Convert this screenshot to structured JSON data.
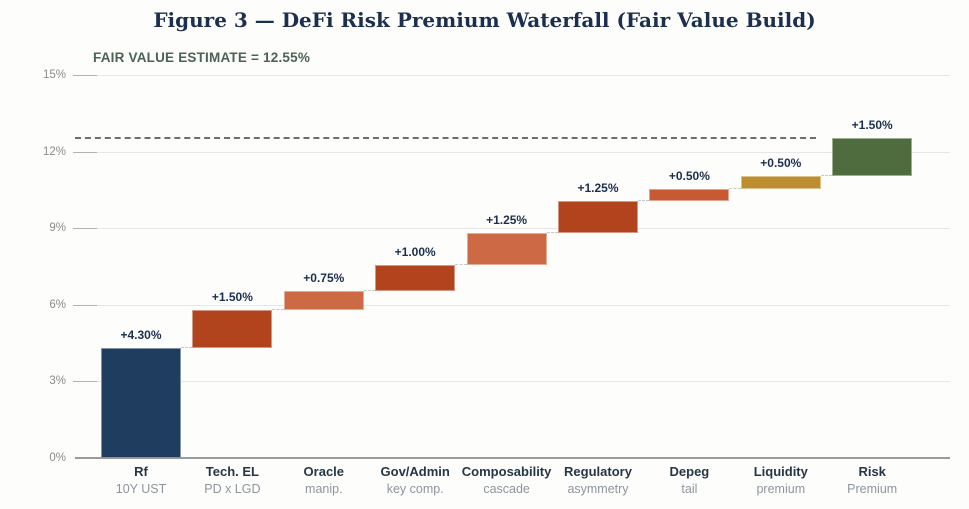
{
  "chart_data": {
    "type": "bar",
    "subtype": "waterfall",
    "title": "Figure 3 — DeFi Risk Premium Waterfall (Fair Value Build)",
    "xlabel": "",
    "ylabel": "",
    "ylim": [
      0,
      15
    ],
    "grid": true,
    "legend": "none",
    "yticks": [
      {
        "value": 0,
        "label": "0%"
      },
      {
        "value": 3,
        "label": "3%"
      },
      {
        "value": 6,
        "label": "6%"
      },
      {
        "value": 9,
        "label": "9%"
      },
      {
        "value": 12,
        "label": "12%"
      },
      {
        "value": 15,
        "label": "15%"
      }
    ],
    "fair_value": {
      "value": 12.55,
      "label": "FAIR VALUE ESTIMATE = 12.55%",
      "line_color": "#6f6d68"
    },
    "categories": [
      {
        "label": "Rf",
        "sublabel": "10Y UST",
        "value": 4.3,
        "value_label": "+4.30%",
        "start": 0,
        "end": 4.3,
        "color": "#1f3d5e"
      },
      {
        "label": "Tech. EL",
        "sublabel": "PD x LGD",
        "value": 1.5,
        "value_label": "+1.50%",
        "start": 4.3,
        "end": 5.8,
        "color": "#b2441d"
      },
      {
        "label": "Oracle",
        "sublabel": "manip.",
        "value": 0.75,
        "value_label": "+0.75%",
        "start": 5.8,
        "end": 6.55,
        "color": "#cb6a44"
      },
      {
        "label": "Gov/Admin",
        "sublabel": "key comp.",
        "value": 1.0,
        "value_label": "+1.00%",
        "start": 6.55,
        "end": 7.55,
        "color": "#b2441d"
      },
      {
        "label": "Composability",
        "sublabel": "cascade",
        "value": 1.25,
        "value_label": "+1.25%",
        "start": 7.55,
        "end": 8.8,
        "color": "#cb6a44"
      },
      {
        "label": "Regulatory",
        "sublabel": "asymmetry",
        "value": 1.25,
        "value_label": "+1.25%",
        "start": 8.8,
        "end": 10.05,
        "color": "#b2441d"
      },
      {
        "label": "Depeg",
        "sublabel": "tail",
        "value": 0.5,
        "value_label": "+0.50%",
        "start": 10.05,
        "end": 10.55,
        "color": "#c75a32"
      },
      {
        "label": "Liquidity",
        "sublabel": "premium",
        "value": 0.5,
        "value_label": "+0.50%",
        "start": 10.55,
        "end": 11.05,
        "color": "#bd8e2f"
      },
      {
        "label": "Risk",
        "sublabel": "Premium",
        "value": 1.5,
        "value_label": "+1.50%",
        "start": 11.05,
        "end": 12.55,
        "color": "#4e6c3e"
      }
    ]
  },
  "colors": {
    "title": "#1c2f4e",
    "annotation": "#4a6454",
    "value_label": "#1c2f4e",
    "axis_label": "#8b8b8b",
    "category_label": "#253746",
    "category_sublabel": "#8e959d",
    "gridline": "#e7e7e7",
    "baseline": "#9a9a9a"
  }
}
